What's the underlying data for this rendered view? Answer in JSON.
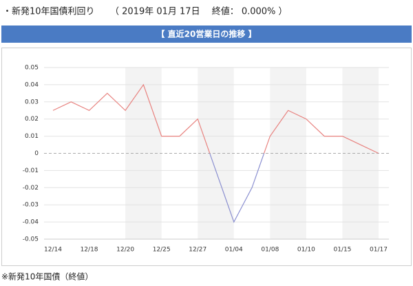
{
  "header": {
    "title": "・新発10年国債利回り",
    "detail": "（ 2019年 01月 17日　 終値： 0.000% ）"
  },
  "chart_data": {
    "type": "line",
    "title": "【 直近20営業日の推移 】",
    "categories": [
      "12/14",
      null,
      "12/18",
      null,
      "12/20",
      null,
      "12/25",
      null,
      "12/27",
      null,
      "01/04",
      null,
      "01/08",
      null,
      "01/10",
      null,
      "01/15",
      null,
      "01/17"
    ],
    "values": [
      0.025,
      0.03,
      0.025,
      0.035,
      0.025,
      0.04,
      0.01,
      0.01,
      0.02,
      -0.01,
      -0.04,
      -0.02,
      0.01,
      0.025,
      0.02,
      0.01,
      0.01,
      0.005,
      0
    ],
    "positive_color": "#e8827f",
    "negative_color": "#8a8fd0",
    "ylim": [
      -0.05,
      0.05
    ],
    "yticks": [
      -0.05,
      -0.04,
      -0.03,
      -0.02,
      -0.01,
      0,
      0.01,
      0.02,
      0.03,
      0.04,
      0.05
    ],
    "grid": true
  },
  "note": "※新発10年国債（終値）"
}
